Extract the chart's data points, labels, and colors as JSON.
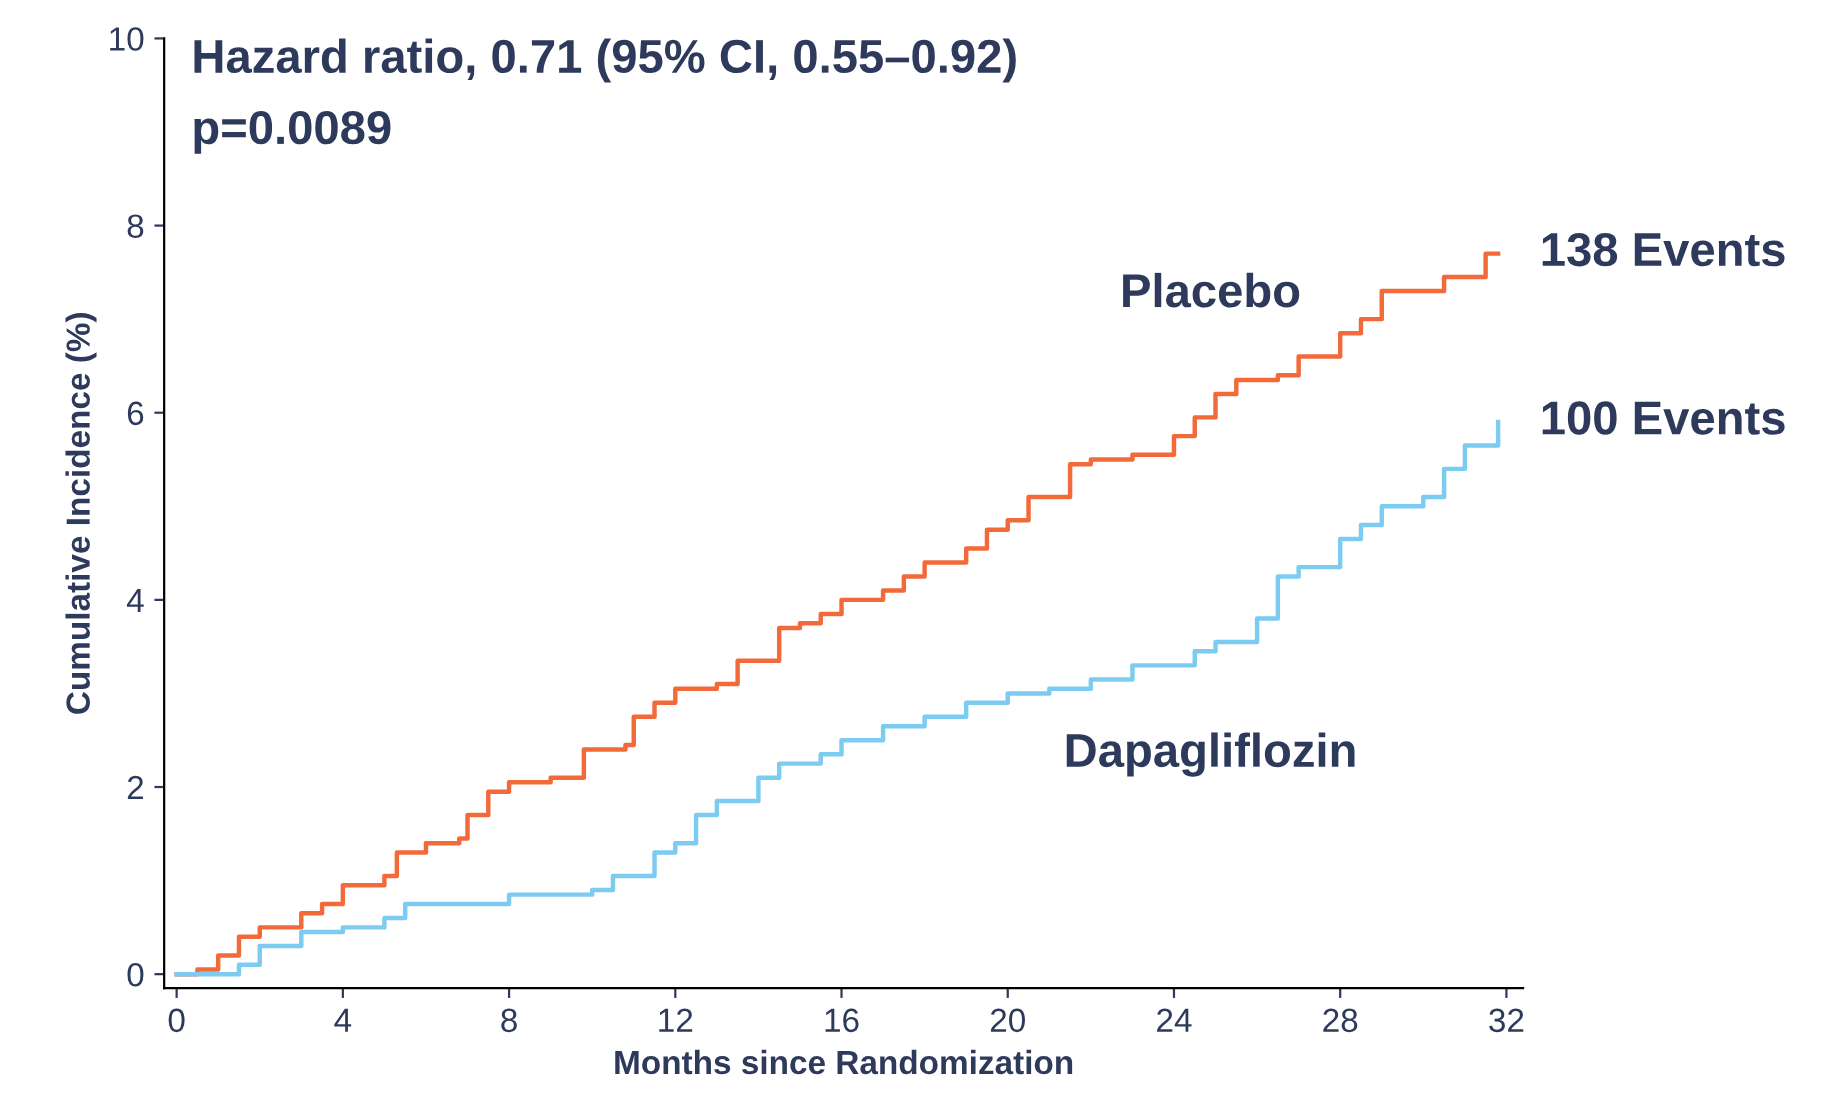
{
  "chart_data": {
    "type": "step",
    "title": "Hazard ratio, 0.71 (95% CI, 0.55–0.92)",
    "subtitle": "p=0.0089",
    "xlabel": "Months since Randomization",
    "ylabel": "Cumulative Incidence (%)",
    "xlim": [
      -0.3,
      32.4
    ],
    "ylim": [
      -0.15,
      10
    ],
    "xticks": [
      0,
      4,
      8,
      12,
      16,
      20,
      24,
      28,
      32
    ],
    "yticks": [
      0,
      2,
      4,
      6,
      8,
      10
    ],
    "grid": false,
    "legend": false,
    "series": [
      {
        "name": "Placebo",
        "color": "#f26a3a",
        "x": [
          0,
          0.5,
          1,
          1.5,
          2,
          3,
          3.5,
          4,
          5,
          5.3,
          6,
          6.8,
          7,
          7.5,
          8,
          9,
          9.8,
          10.8,
          11,
          11.5,
          12,
          13,
          13.5,
          14.5,
          15,
          15.5,
          16,
          17,
          17.5,
          18,
          19,
          19.5,
          20,
          20.5,
          21.5,
          22,
          23,
          24,
          24.5,
          25,
          25.5,
          26.5,
          27,
          28,
          28.5,
          29,
          30.5,
          31.5,
          31.8
        ],
        "values": [
          0,
          0.05,
          0.2,
          0.4,
          0.5,
          0.65,
          0.75,
          0.95,
          1.05,
          1.3,
          1.4,
          1.45,
          1.7,
          1.95,
          2.05,
          2.1,
          2.4,
          2.45,
          2.75,
          2.9,
          3.05,
          3.1,
          3.35,
          3.7,
          3.75,
          3.85,
          4.0,
          4.1,
          4.25,
          4.4,
          4.55,
          4.75,
          4.85,
          5.1,
          5.45,
          5.5,
          5.55,
          5.75,
          5.95,
          6.2,
          6.35,
          6.4,
          6.6,
          6.85,
          7.0,
          7.3,
          7.45,
          7.7,
          7.7
        ]
      },
      {
        "name": "Dapagliflozin",
        "color": "#7ccbf0",
        "x": [
          0,
          1.5,
          2,
          3,
          4,
          5,
          5.5,
          7.5,
          8,
          10,
          10.5,
          11.5,
          12,
          12.5,
          13,
          14,
          14.5,
          15.5,
          16,
          17,
          18,
          19,
          20,
          21,
          22,
          23,
          24.5,
          25,
          26,
          26.5,
          27,
          28,
          28.5,
          29,
          30,
          30.5,
          31,
          31.8
        ],
        "values": [
          0,
          0.1,
          0.3,
          0.45,
          0.5,
          0.6,
          0.75,
          0.75,
          0.85,
          0.9,
          1.05,
          1.3,
          1.4,
          1.7,
          1.85,
          2.1,
          2.25,
          2.35,
          2.5,
          2.65,
          2.75,
          2.9,
          3.0,
          3.05,
          3.15,
          3.3,
          3.45,
          3.55,
          3.8,
          4.25,
          4.35,
          4.65,
          4.8,
          5.0,
          5.1,
          5.4,
          5.65,
          5.9
        ]
      }
    ],
    "annotations": [
      {
        "text": "138 Events",
        "x": 32,
        "y": 7.7
      },
      {
        "text": "100 Events",
        "x": 32,
        "y": 5.9
      }
    ]
  }
}
